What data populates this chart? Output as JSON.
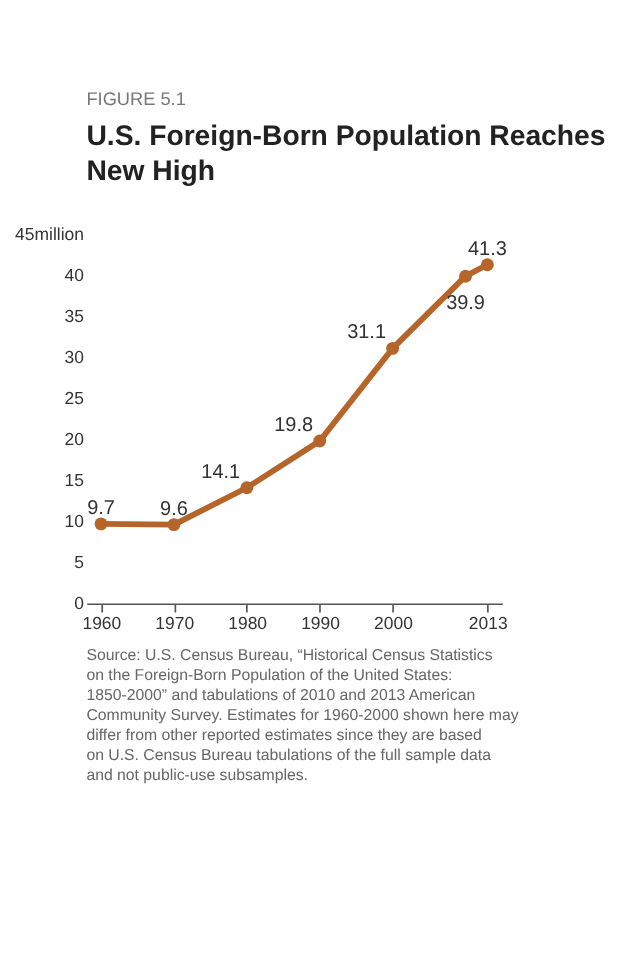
{
  "chart_data": {
    "type": "line",
    "title": "U.S. Foreign-Born Population Reaches New High",
    "annotations": [
      "FIGURE 5.1",
      "Source: U.S. Census Bureau, “Historical Census Statistics on the Foreign-Born Population of the United States: 1850-2000” and tabulations of 2010 and 2013 American Community Survey. Estimates for 1960-2000 shown here may differ from other reported estimates since they are based on U.S. Census Bureau tabulations of the full sample data and not public-use subsamples."
    ],
    "x": [
      1960,
      1970,
      1980,
      1990,
      2000,
      2010,
      2013
    ],
    "series": [
      {
        "color": "#b5652a",
        "values": [
          9.7,
          9.6,
          14.1,
          19.8,
          31.1,
          39.9,
          41.3
        ]
      }
    ],
    "xlim": [
      1958,
      2015
    ],
    "xticks": [
      1960,
      1970,
      1980,
      1990,
      2000,
      2013
    ],
    "ylim": [
      0,
      45
    ],
    "yticks": [
      0,
      5,
      10,
      15,
      20,
      25,
      30,
      35,
      40,
      {
        "value": 45,
        "label": "45million"
      }
    ],
    "data_labels": true,
    "marker": "circle",
    "line_style": "solid",
    "grid": false
  }
}
